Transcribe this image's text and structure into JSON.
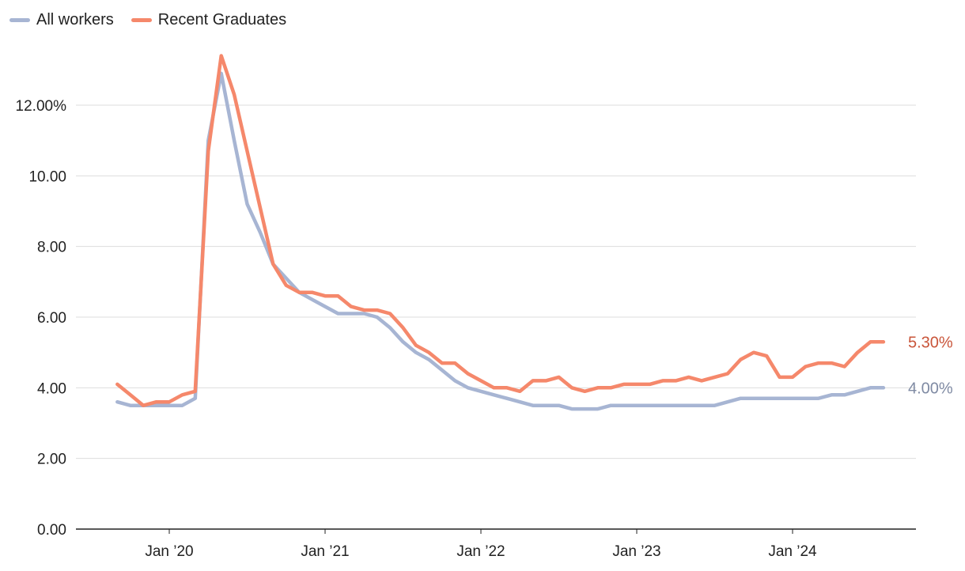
{
  "chart_data": {
    "type": "line",
    "title": "",
    "xlabel": "",
    "ylabel": "",
    "ylim": [
      0,
      13.5
    ],
    "y_ticks": [
      {
        "value": 0,
        "label": "0.00"
      },
      {
        "value": 2,
        "label": "2.00"
      },
      {
        "value": 4,
        "label": "4.00"
      },
      {
        "value": 6,
        "label": "6.00"
      },
      {
        "value": 8,
        "label": "8.00"
      },
      {
        "value": 10,
        "label": "10.00"
      },
      {
        "value": 12,
        "label": "12.00%"
      }
    ],
    "x_ticks": [
      {
        "date": "2020-01",
        "label": "Jan ’20"
      },
      {
        "date": "2021-01",
        "label": "Jan ’21"
      },
      {
        "date": "2022-01",
        "label": "Jan ’22"
      },
      {
        "date": "2023-01",
        "label": "Jan ’23"
      },
      {
        "date": "2024-01",
        "label": "Jan ’24"
      }
    ],
    "grid": true,
    "legend": "top-left",
    "x": [
      "2019-09",
      "2019-10",
      "2019-11",
      "2019-12",
      "2020-01",
      "2020-02",
      "2020-03",
      "2020-04",
      "2020-05",
      "2020-06",
      "2020-07",
      "2020-08",
      "2020-09",
      "2020-10",
      "2020-11",
      "2020-12",
      "2021-01",
      "2021-02",
      "2021-03",
      "2021-04",
      "2021-05",
      "2021-06",
      "2021-07",
      "2021-08",
      "2021-09",
      "2021-10",
      "2021-11",
      "2021-12",
      "2022-01",
      "2022-02",
      "2022-03",
      "2022-04",
      "2022-05",
      "2022-06",
      "2022-07",
      "2022-08",
      "2022-09",
      "2022-10",
      "2022-11",
      "2022-12",
      "2023-01",
      "2023-02",
      "2023-03",
      "2023-04",
      "2023-05",
      "2023-06",
      "2023-07",
      "2023-08",
      "2023-09",
      "2023-10",
      "2023-11",
      "2023-12",
      "2024-01",
      "2024-02",
      "2024-03",
      "2024-04",
      "2024-05",
      "2024-06",
      "2024-07",
      "2024-08"
    ],
    "series": [
      {
        "name": "All workers",
        "color": "#a7b5d3",
        "end_label": "4.00%",
        "values": [
          3.6,
          3.5,
          3.5,
          3.5,
          3.5,
          3.5,
          3.7,
          11.0,
          12.9,
          11.0,
          9.2,
          8.4,
          7.5,
          7.1,
          6.7,
          6.5,
          6.3,
          6.1,
          6.1,
          6.1,
          6.0,
          5.7,
          5.3,
          5.0,
          4.8,
          4.5,
          4.2,
          4.0,
          3.9,
          3.8,
          3.7,
          3.6,
          3.5,
          3.5,
          3.5,
          3.4,
          3.4,
          3.4,
          3.5,
          3.5,
          3.5,
          3.5,
          3.5,
          3.5,
          3.5,
          3.5,
          3.5,
          3.6,
          3.7,
          3.7,
          3.7,
          3.7,
          3.7,
          3.7,
          3.7,
          3.8,
          3.8,
          3.9,
          4.0,
          4.0
        ]
      },
      {
        "name": "Recent Graduates",
        "color": "#f5886b",
        "end_label": "5.30%",
        "values": [
          4.1,
          3.8,
          3.5,
          3.6,
          3.6,
          3.8,
          3.9,
          10.7,
          13.4,
          12.3,
          10.7,
          9.1,
          7.5,
          6.9,
          6.7,
          6.7,
          6.6,
          6.6,
          6.3,
          6.2,
          6.2,
          6.1,
          5.7,
          5.2,
          5.0,
          4.7,
          4.7,
          4.4,
          4.2,
          4.0,
          4.0,
          3.9,
          4.2,
          4.2,
          4.3,
          4.0,
          3.9,
          4.0,
          4.0,
          4.1,
          4.1,
          4.1,
          4.2,
          4.2,
          4.3,
          4.2,
          4.3,
          4.4,
          4.8,
          5.0,
          4.9,
          4.3,
          4.3,
          4.6,
          4.7,
          4.7,
          4.6,
          5.0,
          5.3,
          5.3
        ]
      }
    ]
  }
}
